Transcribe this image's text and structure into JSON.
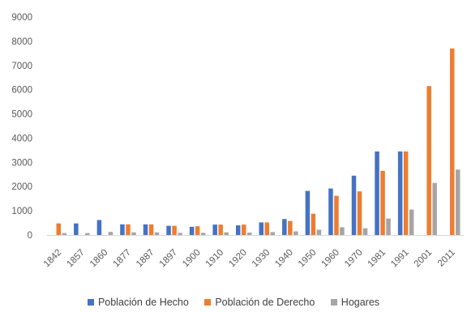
{
  "chart_data": {
    "type": "bar",
    "title": "",
    "xlabel": "",
    "ylabel": "",
    "ylim": [
      0,
      9000
    ],
    "yticks": [
      0,
      1000,
      2000,
      3000,
      4000,
      5000,
      6000,
      7000,
      8000,
      9000
    ],
    "grid": false,
    "legend_position": "bottom",
    "categories": [
      "1842",
      "1857",
      "1860",
      "1877",
      "1887",
      "1897",
      "1900",
      "1910",
      "1920",
      "1930",
      "1940",
      "1950",
      "1960",
      "1970",
      "1981",
      "1991",
      "2001",
      "2011"
    ],
    "series": [
      {
        "name": "Población de Hecho",
        "color": "#4472C4",
        "values": [
          0,
          480,
          620,
          440,
          440,
          380,
          340,
          430,
          400,
          520,
          660,
          1820,
          1920,
          2450,
          3450,
          3450,
          0,
          0
        ]
      },
      {
        "name": "Población de Derecho",
        "color": "#ED7D31",
        "values": [
          480,
          0,
          0,
          440,
          440,
          380,
          360,
          430,
          430,
          520,
          580,
          880,
          1620,
          1800,
          2650,
          3450,
          6150,
          7700
        ]
      },
      {
        "name": "Hogares",
        "color": "#A5A5A5",
        "values": [
          80,
          80,
          130,
          110,
          110,
          90,
          90,
          110,
          100,
          120,
          150,
          220,
          320,
          280,
          680,
          1050,
          2150,
          2700
        ]
      }
    ]
  }
}
